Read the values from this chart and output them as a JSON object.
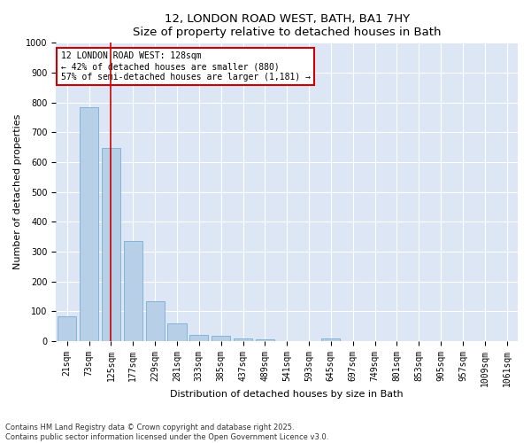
{
  "title_line1": "12, LONDON ROAD WEST, BATH, BA1 7HY",
  "title_line2": "Size of property relative to detached houses in Bath",
  "xlabel": "Distribution of detached houses by size in Bath",
  "ylabel": "Number of detached properties",
  "categories": [
    "21sqm",
    "73sqm",
    "125sqm",
    "177sqm",
    "229sqm",
    "281sqm",
    "333sqm",
    "385sqm",
    "437sqm",
    "489sqm",
    "541sqm",
    "593sqm",
    "645sqm",
    "697sqm",
    "749sqm",
    "801sqm",
    "853sqm",
    "905sqm",
    "957sqm",
    "1009sqm",
    "1061sqm"
  ],
  "values": [
    83,
    783,
    648,
    335,
    133,
    60,
    22,
    18,
    10,
    7,
    0,
    0,
    8,
    0,
    0,
    0,
    0,
    0,
    0,
    0,
    0
  ],
  "bar_color": "#b8cfe8",
  "bar_edge_color": "#7aadd4",
  "vline_x_index": 2,
  "vline_color": "#cc0000",
  "annotation_text": "12 LONDON ROAD WEST: 128sqm\n← 42% of detached houses are smaller (880)\n57% of semi-detached houses are larger (1,181) →",
  "annotation_box_facecolor": "#ffffff",
  "annotation_box_edgecolor": "#cc0000",
  "ylim": [
    0,
    1000
  ],
  "yticks": [
    0,
    100,
    200,
    300,
    400,
    500,
    600,
    700,
    800,
    900,
    1000
  ],
  "fig_facecolor": "#ffffff",
  "ax_facecolor": "#dce6f5",
  "grid_color": "#ffffff",
  "footer_line1": "Contains HM Land Registry data © Crown copyright and database right 2025.",
  "footer_line2": "Contains public sector information licensed under the Open Government Licence v3.0.",
  "title_fontsize": 9.5,
  "xlabel_fontsize": 8,
  "ylabel_fontsize": 8,
  "tick_fontsize": 7,
  "footer_fontsize": 6
}
